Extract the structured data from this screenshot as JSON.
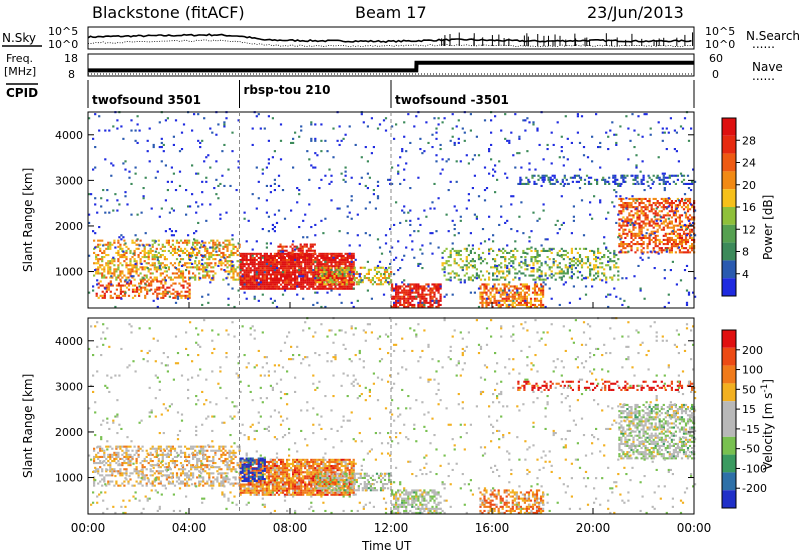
{
  "header": {
    "station": "Blackstone (fitACF)",
    "beam": "Beam 17",
    "date": "23/Jun/2013"
  },
  "labels": {
    "nsky": "N.Sky",
    "nsearch": "N.Search",
    "freq_line1": "Freq.",
    "freq_line2": "[MHz]",
    "nave": "Nave",
    "cpid": "CPID",
    "legend_dots": "......"
  },
  "colors": {
    "power_scale": [
      "#1f2be0",
      "#2a5ab0",
      "#3c8a5a",
      "#55a050",
      "#8fc03a",
      "#f6c01a",
      "#f28a14",
      "#ee5a12",
      "#e62a10",
      "#de1010"
    ],
    "velocity_scale": [
      "#2030c8",
      "#2e70a8",
      "#3a9a60",
      "#78c050",
      "#b8b8b8",
      "#b8b8b8",
      "#f2b020",
      "#f07a1a",
      "#ec4a14",
      "#e01010"
    ]
  },
  "chart_data": [
    {
      "type": "line",
      "name": "noise-panel",
      "left_axis": {
        "label": "N.Sky",
        "ticks": [
          "10^5",
          "10^0"
        ]
      },
      "right_axis": {
        "label": "N.Search",
        "ticks": [
          "10^5",
          "10^0"
        ]
      },
      "series": [
        {
          "kind": "sky",
          "x": [
            0,
            1,
            2,
            3,
            4,
            5,
            6,
            7,
            8,
            9,
            10,
            11,
            12,
            13,
            14,
            15,
            16,
            17,
            18,
            19,
            20,
            21,
            22,
            23,
            24
          ],
          "y": [
            0.55,
            0.58,
            0.6,
            0.62,
            0.64,
            0.66,
            0.6,
            0.4,
            0.38,
            0.36,
            0.35,
            0.34,
            0.33,
            0.36,
            0.4,
            0.42,
            0.38,
            0.36,
            0.34,
            0.36,
            0.38,
            0.36,
            0.34,
            0.35,
            0.36
          ]
        },
        {
          "kind": "search",
          "x": [
            0,
            1,
            2,
            3,
            4,
            5,
            6,
            7,
            8,
            9,
            10,
            11,
            12,
            13,
            14,
            15,
            16,
            17,
            18,
            19,
            20,
            21,
            22,
            23,
            24
          ],
          "y": [
            0.25,
            0.28,
            0.3,
            0.33,
            0.35,
            0.38,
            0.3,
            0.15,
            0.12,
            0.1,
            0.1,
            0.1,
            0.1,
            0.12,
            0.15,
            0.16,
            0.12,
            0.1,
            0.1,
            0.12,
            0.12,
            0.1,
            0.1,
            0.1,
            0.1
          ]
        }
      ]
    },
    {
      "type": "line",
      "name": "frequency-panel",
      "left_axis": {
        "label": "Freq. [MHz]",
        "ticks": [
          18,
          8
        ]
      },
      "right_axis": {
        "label": "Nave",
        "ticks": [
          60,
          0
        ]
      },
      "series": [
        {
          "kind": "frequency",
          "x": [
            0,
            13,
            13.01,
            24
          ],
          "y": [
            10.8,
            10.8,
            14.6,
            14.6
          ]
        },
        {
          "kind": "nave",
          "x": [
            0,
            24
          ],
          "y": [
            8,
            8
          ]
        }
      ]
    },
    {
      "type": "table",
      "name": "cpid-panel",
      "segments": [
        {
          "start": 0,
          "end": 6,
          "label": "twofsound 3501"
        },
        {
          "start": 6,
          "end": 12,
          "label": "rbsp-tou 210"
        },
        {
          "start": 12,
          "end": 24,
          "label": "twofsound -3501"
        }
      ]
    },
    {
      "type": "heatmap",
      "name": "power-panel",
      "ylabel": "Slant Range [km]",
      "ylim": [
        200,
        4500
      ],
      "yticks": [
        1000,
        2000,
        3000,
        4000
      ],
      "colorbar": {
        "label": "Power [dB]",
        "ticks": [
          4,
          8,
          12,
          16,
          20,
          24,
          28
        ]
      },
      "features": [
        {
          "t0": 0.2,
          "t1": 6,
          "r0": 800,
          "r1": 1700,
          "v": 0.6,
          "d": 0.45
        },
        {
          "t0": 0.3,
          "t1": 4,
          "r0": 400,
          "r1": 800,
          "v": 0.75,
          "d": 0.4
        },
        {
          "t0": 6,
          "t1": 10.5,
          "r0": 600,
          "r1": 1400,
          "v": 0.95,
          "d": 0.9
        },
        {
          "t0": 7.5,
          "t1": 9,
          "r0": 1300,
          "r1": 1600,
          "v": 0.9,
          "d": 0.6
        },
        {
          "t0": 9,
          "t1": 12,
          "r0": 700,
          "r1": 1100,
          "v": 0.55,
          "d": 0.5
        },
        {
          "t0": 12,
          "t1": 14,
          "r0": 200,
          "r1": 700,
          "v": 0.9,
          "d": 0.7
        },
        {
          "t0": 15.5,
          "t1": 18,
          "r0": 200,
          "r1": 700,
          "v": 0.7,
          "d": 0.6
        },
        {
          "t0": 14,
          "t1": 21,
          "r0": 800,
          "r1": 1500,
          "v": 0.4,
          "d": 0.3
        },
        {
          "t0": 21,
          "t1": 24,
          "r0": 1400,
          "r1": 2600,
          "v": 0.75,
          "d": 0.55
        },
        {
          "t0": 17,
          "t1": 24,
          "r0": 2900,
          "r1": 3100,
          "v": 0.15,
          "d": 0.35
        },
        {
          "t0": 0,
          "t1": 24,
          "r0": 200,
          "r1": 4500,
          "v": 0.1,
          "d": 0.04
        }
      ]
    },
    {
      "type": "heatmap",
      "name": "velocity-panel",
      "ylabel": "Slant Range [km]",
      "ylim": [
        200,
        4500
      ],
      "yticks": [
        1000,
        2000,
        3000,
        4000
      ],
      "xlabel": "Time UT",
      "xlim": [
        0,
        24
      ],
      "xticks": [
        "00:00",
        "04:00",
        "08:00",
        "12:00",
        "16:00",
        "20:00",
        "00:00"
      ],
      "colorbar": {
        "label": "Velocity [m s^-1]",
        "ticks": [
          200,
          100,
          50,
          15,
          -15,
          -50,
          -100,
          -200
        ]
      },
      "features": [
        {
          "t0": 0.2,
          "t1": 6,
          "r0": 800,
          "r1": 1700,
          "v": 0.6,
          "d": 0.45
        },
        {
          "t0": 6,
          "t1": 10.5,
          "r0": 600,
          "r1": 1400,
          "v": 0.75,
          "d": 0.85
        },
        {
          "t0": 6,
          "t1": 7,
          "r0": 900,
          "r1": 1400,
          "v": 0.05,
          "d": 0.7
        },
        {
          "t0": 9,
          "t1": 12,
          "r0": 700,
          "r1": 1100,
          "v": 0.45,
          "d": 0.5
        },
        {
          "t0": 12,
          "t1": 14,
          "r0": 200,
          "r1": 700,
          "v": 0.45,
          "d": 0.6
        },
        {
          "t0": 15.5,
          "t1": 18,
          "r0": 200,
          "r1": 700,
          "v": 0.7,
          "d": 0.5
        },
        {
          "t0": 21,
          "t1": 24,
          "r0": 1400,
          "r1": 2600,
          "v": 0.45,
          "d": 0.55
        },
        {
          "t0": 17,
          "t1": 24,
          "r0": 2900,
          "r1": 3100,
          "v": 0.95,
          "d": 0.3
        },
        {
          "t0": 0,
          "t1": 24,
          "r0": 200,
          "r1": 4500,
          "v": 0.5,
          "d": 0.04
        }
      ]
    }
  ]
}
